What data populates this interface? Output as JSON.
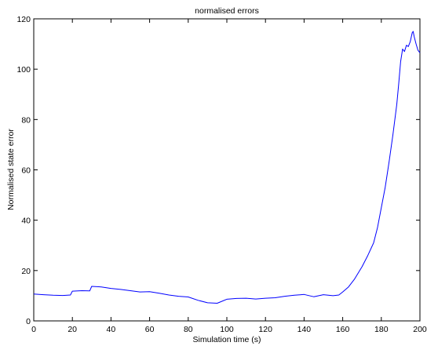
{
  "chart_data": {
    "type": "line",
    "title": "normalised errors",
    "xlabel": "Simulation time (s)",
    "ylabel": "Normalised state error",
    "xlim": [
      0,
      200
    ],
    "ylim": [
      0,
      120
    ],
    "xticks": [
      0,
      20,
      40,
      60,
      80,
      100,
      120,
      140,
      160,
      180,
      200
    ],
    "yticks": [
      0,
      20,
      40,
      60,
      80,
      100,
      120
    ],
    "grid": false,
    "series": [
      {
        "color": "#0000ff",
        "x": [
          0,
          5,
          10,
          15,
          19,
          20,
          25,
          29,
          30,
          35,
          40,
          45,
          50,
          55,
          60,
          65,
          70,
          75,
          80,
          85,
          90,
          95,
          100,
          105,
          110,
          115,
          120,
          125,
          130,
          135,
          140,
          145,
          150,
          155,
          158,
          160,
          163,
          166,
          170,
          173,
          176,
          178,
          180,
          182,
          184,
          186,
          188,
          189,
          190,
          191,
          192,
          193,
          194,
          195,
          196,
          196.5,
          197,
          198,
          199,
          200
        ],
        "y": [
          10.7,
          10.4,
          10.2,
          10.1,
          10.3,
          11.8,
          12.0,
          11.9,
          13.7,
          13.5,
          12.9,
          12.5,
          12.0,
          11.5,
          11.6,
          11.0,
          10.3,
          9.8,
          9.5,
          8.2,
          7.2,
          7.0,
          8.6,
          8.9,
          9.0,
          8.7,
          9.0,
          9.2,
          9.8,
          10.2,
          10.5,
          9.6,
          10.4,
          10.0,
          10.3,
          11.5,
          13.5,
          16.5,
          21.5,
          26.0,
          31.0,
          37.0,
          45.0,
          53.0,
          63.0,
          74.0,
          86.0,
          94.0,
          103.0,
          108.0,
          107.0,
          109.5,
          109.0,
          111.0,
          114.5,
          115.0,
          113.0,
          110.0,
          107.5,
          106.5
        ]
      }
    ]
  }
}
